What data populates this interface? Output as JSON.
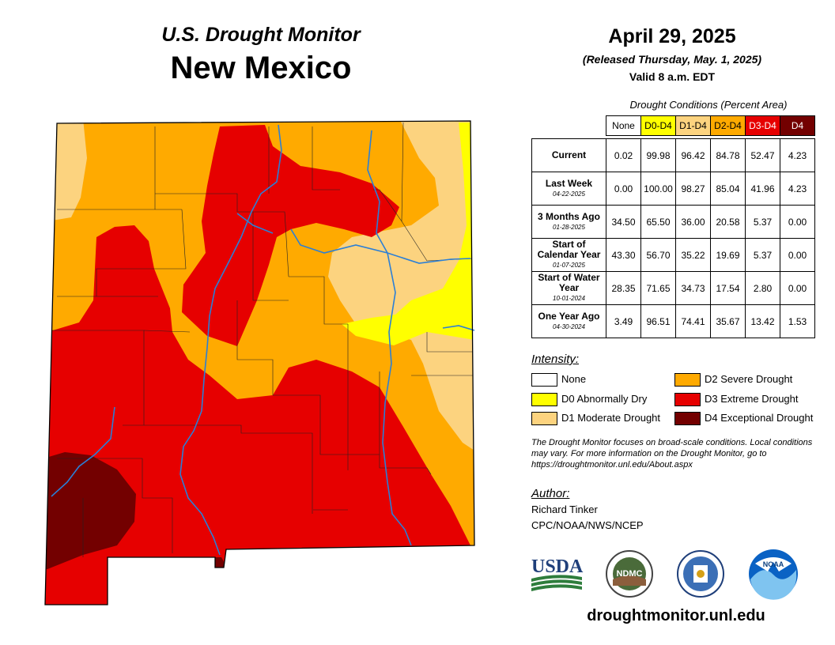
{
  "header": {
    "subtitle": "U.S. Drought Monitor",
    "state": "New Mexico",
    "date": "April 29, 2025",
    "released": "(Released Thursday, May. 1, 2025)",
    "valid": "Valid 8 a.m. EDT"
  },
  "table": {
    "caption": "Drought Conditions (Percent Area)",
    "columns": [
      "None",
      "D0-D4",
      "D1-D4",
      "D2-D4",
      "D3-D4",
      "D4"
    ],
    "column_colors": [
      "#ffffff",
      "#ffff00",
      "#fcd37f",
      "#ffaa00",
      "#e60000",
      "#730000"
    ],
    "rows": [
      {
        "label": "Current",
        "date": "",
        "values": [
          "0.02",
          "99.98",
          "96.42",
          "84.78",
          "52.47",
          "4.23"
        ]
      },
      {
        "label": "Last Week",
        "date": "04-22-2025",
        "values": [
          "0.00",
          "100.00",
          "98.27",
          "85.04",
          "41.96",
          "4.23"
        ]
      },
      {
        "label": "3 Months Ago",
        "date": "01-28-2025",
        "values": [
          "34.50",
          "65.50",
          "36.00",
          "20.58",
          "5.37",
          "0.00"
        ]
      },
      {
        "label": "Start of Calendar Year",
        "date": "01-07-2025",
        "values": [
          "43.30",
          "56.70",
          "35.22",
          "19.69",
          "5.37",
          "0.00"
        ]
      },
      {
        "label": "Start of Water Year",
        "date": "10-01-2024",
        "values": [
          "28.35",
          "71.65",
          "34.73",
          "17.54",
          "2.80",
          "0.00"
        ]
      },
      {
        "label": "One Year Ago",
        "date": "04-30-2024",
        "values": [
          "3.49",
          "96.51",
          "74.41",
          "35.67",
          "13.42",
          "1.53"
        ]
      }
    ]
  },
  "legend": {
    "title": "Intensity:",
    "items": [
      {
        "label": "None",
        "color": "#ffffff"
      },
      {
        "label": "D0 Abnormally Dry",
        "color": "#ffff00"
      },
      {
        "label": "D1 Moderate Drought",
        "color": "#fcd37f"
      },
      {
        "label": "D2 Severe Drought",
        "color": "#ffaa00"
      },
      {
        "label": "D3 Extreme Drought",
        "color": "#e60000"
      },
      {
        "label": "D4 Exceptional Drought",
        "color": "#730000"
      }
    ]
  },
  "note": "The Drought Monitor focuses on broad-scale conditions. Local conditions may vary. For more information on the Drought Monitor, go to https://droughtmonitor.unl.edu/About.aspx",
  "author": {
    "title": "Author:",
    "name": "Richard Tinker",
    "org": "CPC/NOAA/NWS/NCEP"
  },
  "logos": {
    "usda": "USDA",
    "ndmc": "NDMC",
    "noaa": "NOAA"
  },
  "footer_url": "droughtmonitor.unl.edu"
}
